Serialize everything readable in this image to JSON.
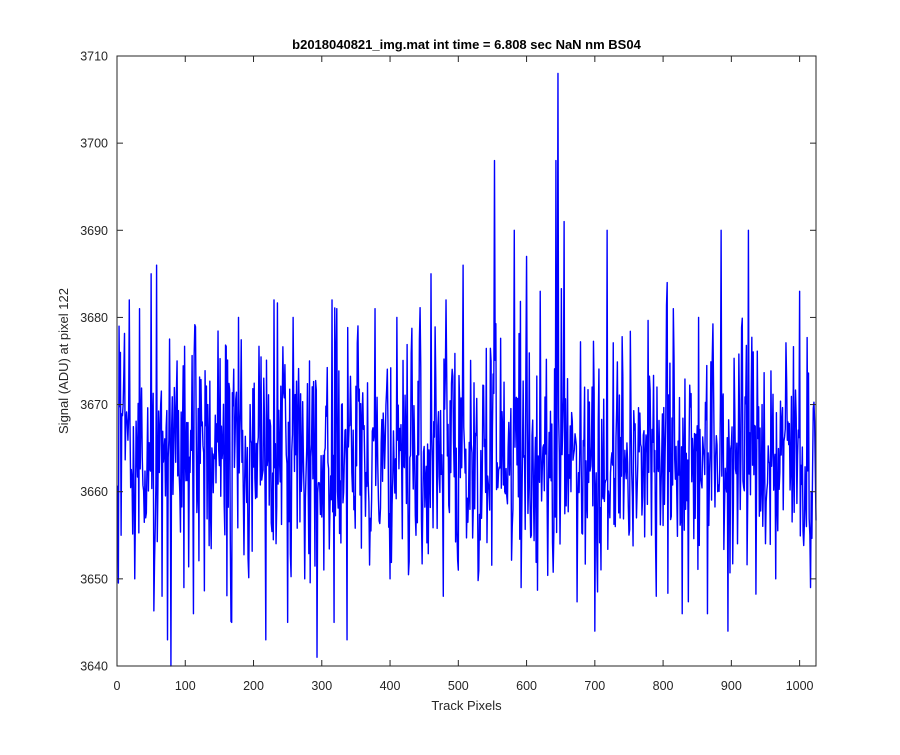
{
  "chart_data": {
    "type": "line",
    "title": "b2018040821_img.mat int time = 6.808 sec  NaN nm BS04",
    "xlabel": "Track Pixels",
    "ylabel": "Signal (ADU) at pixel 122",
    "xlim": [
      0,
      1024
    ],
    "ylim": [
      3640,
      3710
    ],
    "xticks": [
      0,
      100,
      200,
      300,
      400,
      500,
      600,
      700,
      800,
      900,
      1000
    ],
    "yticks": [
      3640,
      3650,
      3660,
      3670,
      3680,
      3690,
      3700,
      3710
    ],
    "grid": false,
    "legend": "none",
    "line_color": "#0000ff",
    "noise": {
      "x_start": 1,
      "x_end": 1024,
      "mean": 3664.5,
      "approx_min": 3641,
      "approx_max": 3686
    },
    "series": [
      {
        "x": [
          3,
          6,
          9,
          18,
          26,
          33,
          42,
          50,
          55,
          58,
          66,
          74,
          79,
          88,
          98,
          112,
          118,
          133,
          150,
          168,
          178,
          185,
          195,
          218,
          230,
          250,
          258,
          275,
          282,
          293,
          305,
          315,
          318,
          322,
          337,
          345,
          378,
          400,
          410,
          438,
          460,
          478,
          482,
          500,
          507,
          553,
          568,
          582,
          592,
          600,
          607,
          620,
          630,
          643,
          646,
          649,
          655,
          665,
          685,
          700,
          718,
          730,
          772,
          790,
          815,
          828,
          852,
          865,
          880,
          885,
          895,
          925,
          945,
          965,
          1000,
          1010,
          1016
        ],
        "values": [
          3679,
          3655,
          3670,
          3682,
          3650,
          3681,
          3657,
          3685,
          3652,
          3686,
          3648,
          3643,
          3640,
          3675,
          3649,
          3646,
          3660,
          3670,
          3663,
          3645,
          3680,
          3660,
          3670,
          3643,
          3682,
          3645,
          3680,
          3650,
          3675,
          3641,
          3665,
          3682,
          3645,
          3681,
          3643,
          3660,
          3681,
          3650,
          3680,
          3655,
          3685,
          3648,
          3682,
          3651,
          3686,
          3698,
          3660,
          3690,
          3649,
          3687,
          3655,
          3683,
          3660,
          3698,
          3708,
          3654,
          3691,
          3660,
          3672,
          3644,
          3690,
          3656,
          3667,
          3648,
          3681,
          3646,
          3680,
          3646,
          3660,
          3690,
          3644,
          3690,
          3670,
          3650,
          3683,
          3656,
          3649
        ]
      }
    ]
  }
}
